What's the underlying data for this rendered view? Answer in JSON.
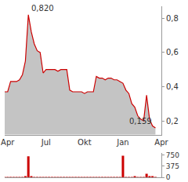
{
  "chart_data": [
    {
      "type": "area",
      "categories": [
        null,
        "Apr",
        null,
        null,
        null,
        null,
        null,
        null,
        null,
        null,
        null,
        null,
        null,
        null,
        "Jul",
        null,
        null,
        null,
        null,
        null,
        null,
        null,
        null,
        null,
        null,
        null,
        null,
        "Okt",
        null,
        null,
        null,
        null,
        null,
        null,
        null,
        null,
        null,
        null,
        null,
        null,
        "Jan",
        null,
        null,
        null,
        null,
        null,
        null,
        null,
        null,
        null,
        null,
        null,
        null,
        "Apr"
      ],
      "values": [
        0.37,
        0.37,
        0.43,
        0.43,
        0.43,
        0.44,
        0.47,
        0.55,
        0.82,
        0.72,
        0.65,
        0.61,
        0.6,
        0.48,
        0.5,
        0.5,
        0.5,
        0.5,
        0.49,
        0.5,
        0.5,
        0.5,
        0.38,
        0.37,
        0.37,
        0.37,
        0.37,
        0.36,
        0.37,
        0.37,
        0.37,
        0.46,
        0.45,
        0.45,
        0.44,
        0.45,
        0.45,
        0.44,
        0.44,
        0.43,
        0.42,
        0.38,
        0.36,
        0.3,
        0.28,
        0.23,
        0.21,
        0.2,
        0.35,
        0.21,
        0.17,
        0.159,
        null,
        null
      ],
      "color": "#cc0000",
      "ylim": [
        0.12,
        0.87
      ],
      "yticks": [
        {
          "value": 0.2,
          "label": "0,2"
        },
        {
          "value": 0.4,
          "label": "0,4"
        },
        {
          "value": 0.6,
          "label": "0,6"
        },
        {
          "value": 0.8,
          "label": "0,8"
        }
      ],
      "grid": false,
      "annotations": [
        {
          "text": "0,820",
          "index": 8,
          "value": 0.82
        },
        {
          "text": "0,159",
          "index": 51,
          "value": 0.159
        }
      ]
    },
    {
      "type": "bar",
      "categories": [
        null,
        "Apr",
        null,
        null,
        null,
        null,
        null,
        null,
        null,
        null,
        null,
        null,
        null,
        null,
        "Jul",
        null,
        null,
        null,
        null,
        null,
        null,
        null,
        null,
        null,
        null,
        null,
        null,
        "Okt",
        null,
        null,
        null,
        null,
        null,
        null,
        null,
        null,
        null,
        null,
        null,
        null,
        "Jan",
        null,
        null,
        null,
        null,
        null,
        null,
        null,
        null,
        null,
        null,
        null,
        null,
        "Apr"
      ],
      "values": [
        5,
        3,
        8,
        4,
        6,
        10,
        12,
        20,
        700,
        15,
        8,
        6,
        5,
        4,
        6,
        3,
        2,
        4,
        3,
        2,
        3,
        5,
        10,
        4,
        3,
        2,
        3,
        2,
        3,
        2,
        4,
        12,
        5,
        4,
        3,
        4,
        3,
        3,
        5,
        6,
        720,
        10,
        8,
        12,
        15,
        10,
        8,
        12,
        120,
        20,
        15,
        10,
        null,
        null
      ],
      "color": "#cc0000",
      "ylim": [
        0,
        800
      ],
      "yticks": [
        0,
        375,
        750
      ],
      "grid": false,
      "tick_labels": "y"
    }
  ]
}
